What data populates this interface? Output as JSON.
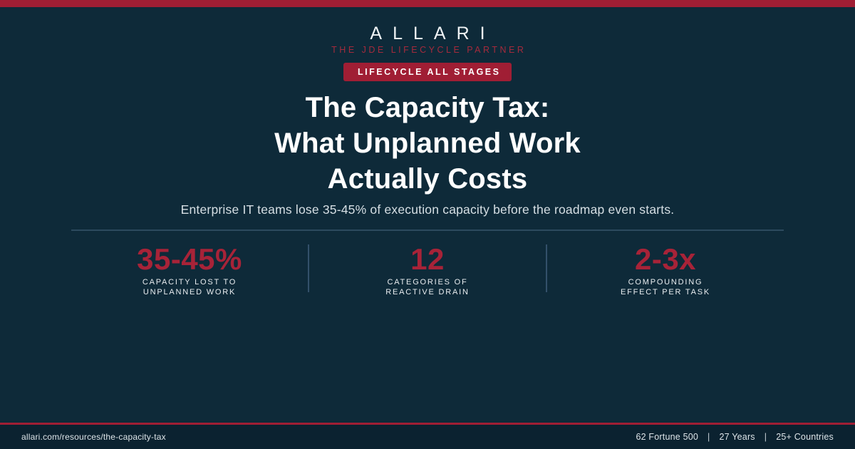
{
  "colors": {
    "background": "#0E2A39",
    "footer_background": "#0B2230",
    "accent_red": "#A01E34",
    "stat_red": "#A72338",
    "text_white": "#FFFFFF",
    "text_muted": "#D6DFE4",
    "divider": "#2C4A5E"
  },
  "header": {
    "brand": "ALLARI",
    "tagline": "THE JDE LIFECYCLE PARTNER",
    "badge": "LIFECYCLE ALL STAGES"
  },
  "title": {
    "line1": "The Capacity Tax:",
    "line2": "What Unplanned Work",
    "line3": "Actually Costs"
  },
  "subtitle": "Enterprise IT teams lose 35-45% of execution capacity before the roadmap even starts.",
  "stats": [
    {
      "value": "35-45%",
      "label_line1": "CAPACITY LOST TO",
      "label_line2": "UNPLANNED WORK"
    },
    {
      "value": "12",
      "label_line1": "CATEGORIES OF",
      "label_line2": "REACTIVE DRAIN"
    },
    {
      "value": "2-3x",
      "label_line1": "COMPOUNDING",
      "label_line2": "EFFECT PER TASK"
    }
  ],
  "footer": {
    "url": "allari.com/resources/the-capacity-tax",
    "separator": "|",
    "items": [
      "62 Fortune 500",
      "27 Years",
      "25+ Countries"
    ]
  }
}
